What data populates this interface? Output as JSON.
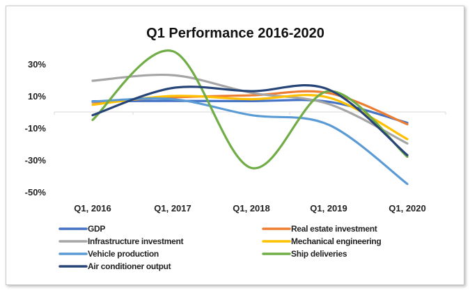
{
  "chart_data": {
    "type": "line",
    "title": "Q1 Performance 2016-2020",
    "categories": [
      "Q1, 2016",
      "Q1, 2017",
      "Q1, 2018",
      "Q1, 2019",
      "Q1, 2020"
    ],
    "y_ticks": [
      "30%",
      "10%",
      "-10%",
      "-30%",
      "-50%"
    ],
    "ylim": [
      -50,
      30
    ],
    "smooth": true,
    "legend_position": "bottom",
    "series": [
      {
        "name": "GDP",
        "color": "#4472C4",
        "values": [
          6.7,
          6.9,
          6.8,
          6.4,
          -6.8
        ]
      },
      {
        "name": "Real estate investment",
        "color": "#ED7D31",
        "values": [
          6.0,
          9.1,
          10.4,
          11.8,
          -7.7
        ]
      },
      {
        "name": "Infrastructure investment",
        "color": "#A5A5A5",
        "values": [
          19.5,
          23.0,
          12.0,
          5.0,
          -19.7
        ]
      },
      {
        "name": "Mechanical engineering",
        "color": "#FFC000",
        "values": [
          4.5,
          10.0,
          8.0,
          9.0,
          -17.0
        ]
      },
      {
        "name": "Vehicle production",
        "color": "#5B9BD5",
        "values": [
          6.5,
          8.0,
          -2.0,
          -8.0,
          -45.0
        ]
      },
      {
        "name": "Ship deliveries",
        "color": "#70AD47",
        "values": [
          -5.0,
          38.0,
          -35.0,
          13.0,
          -28.0
        ]
      },
      {
        "name": "Air conditioner output",
        "color": "#264478",
        "values": [
          -2.0,
          15.0,
          13.0,
          14.0,
          -27.0
        ]
      }
    ]
  }
}
